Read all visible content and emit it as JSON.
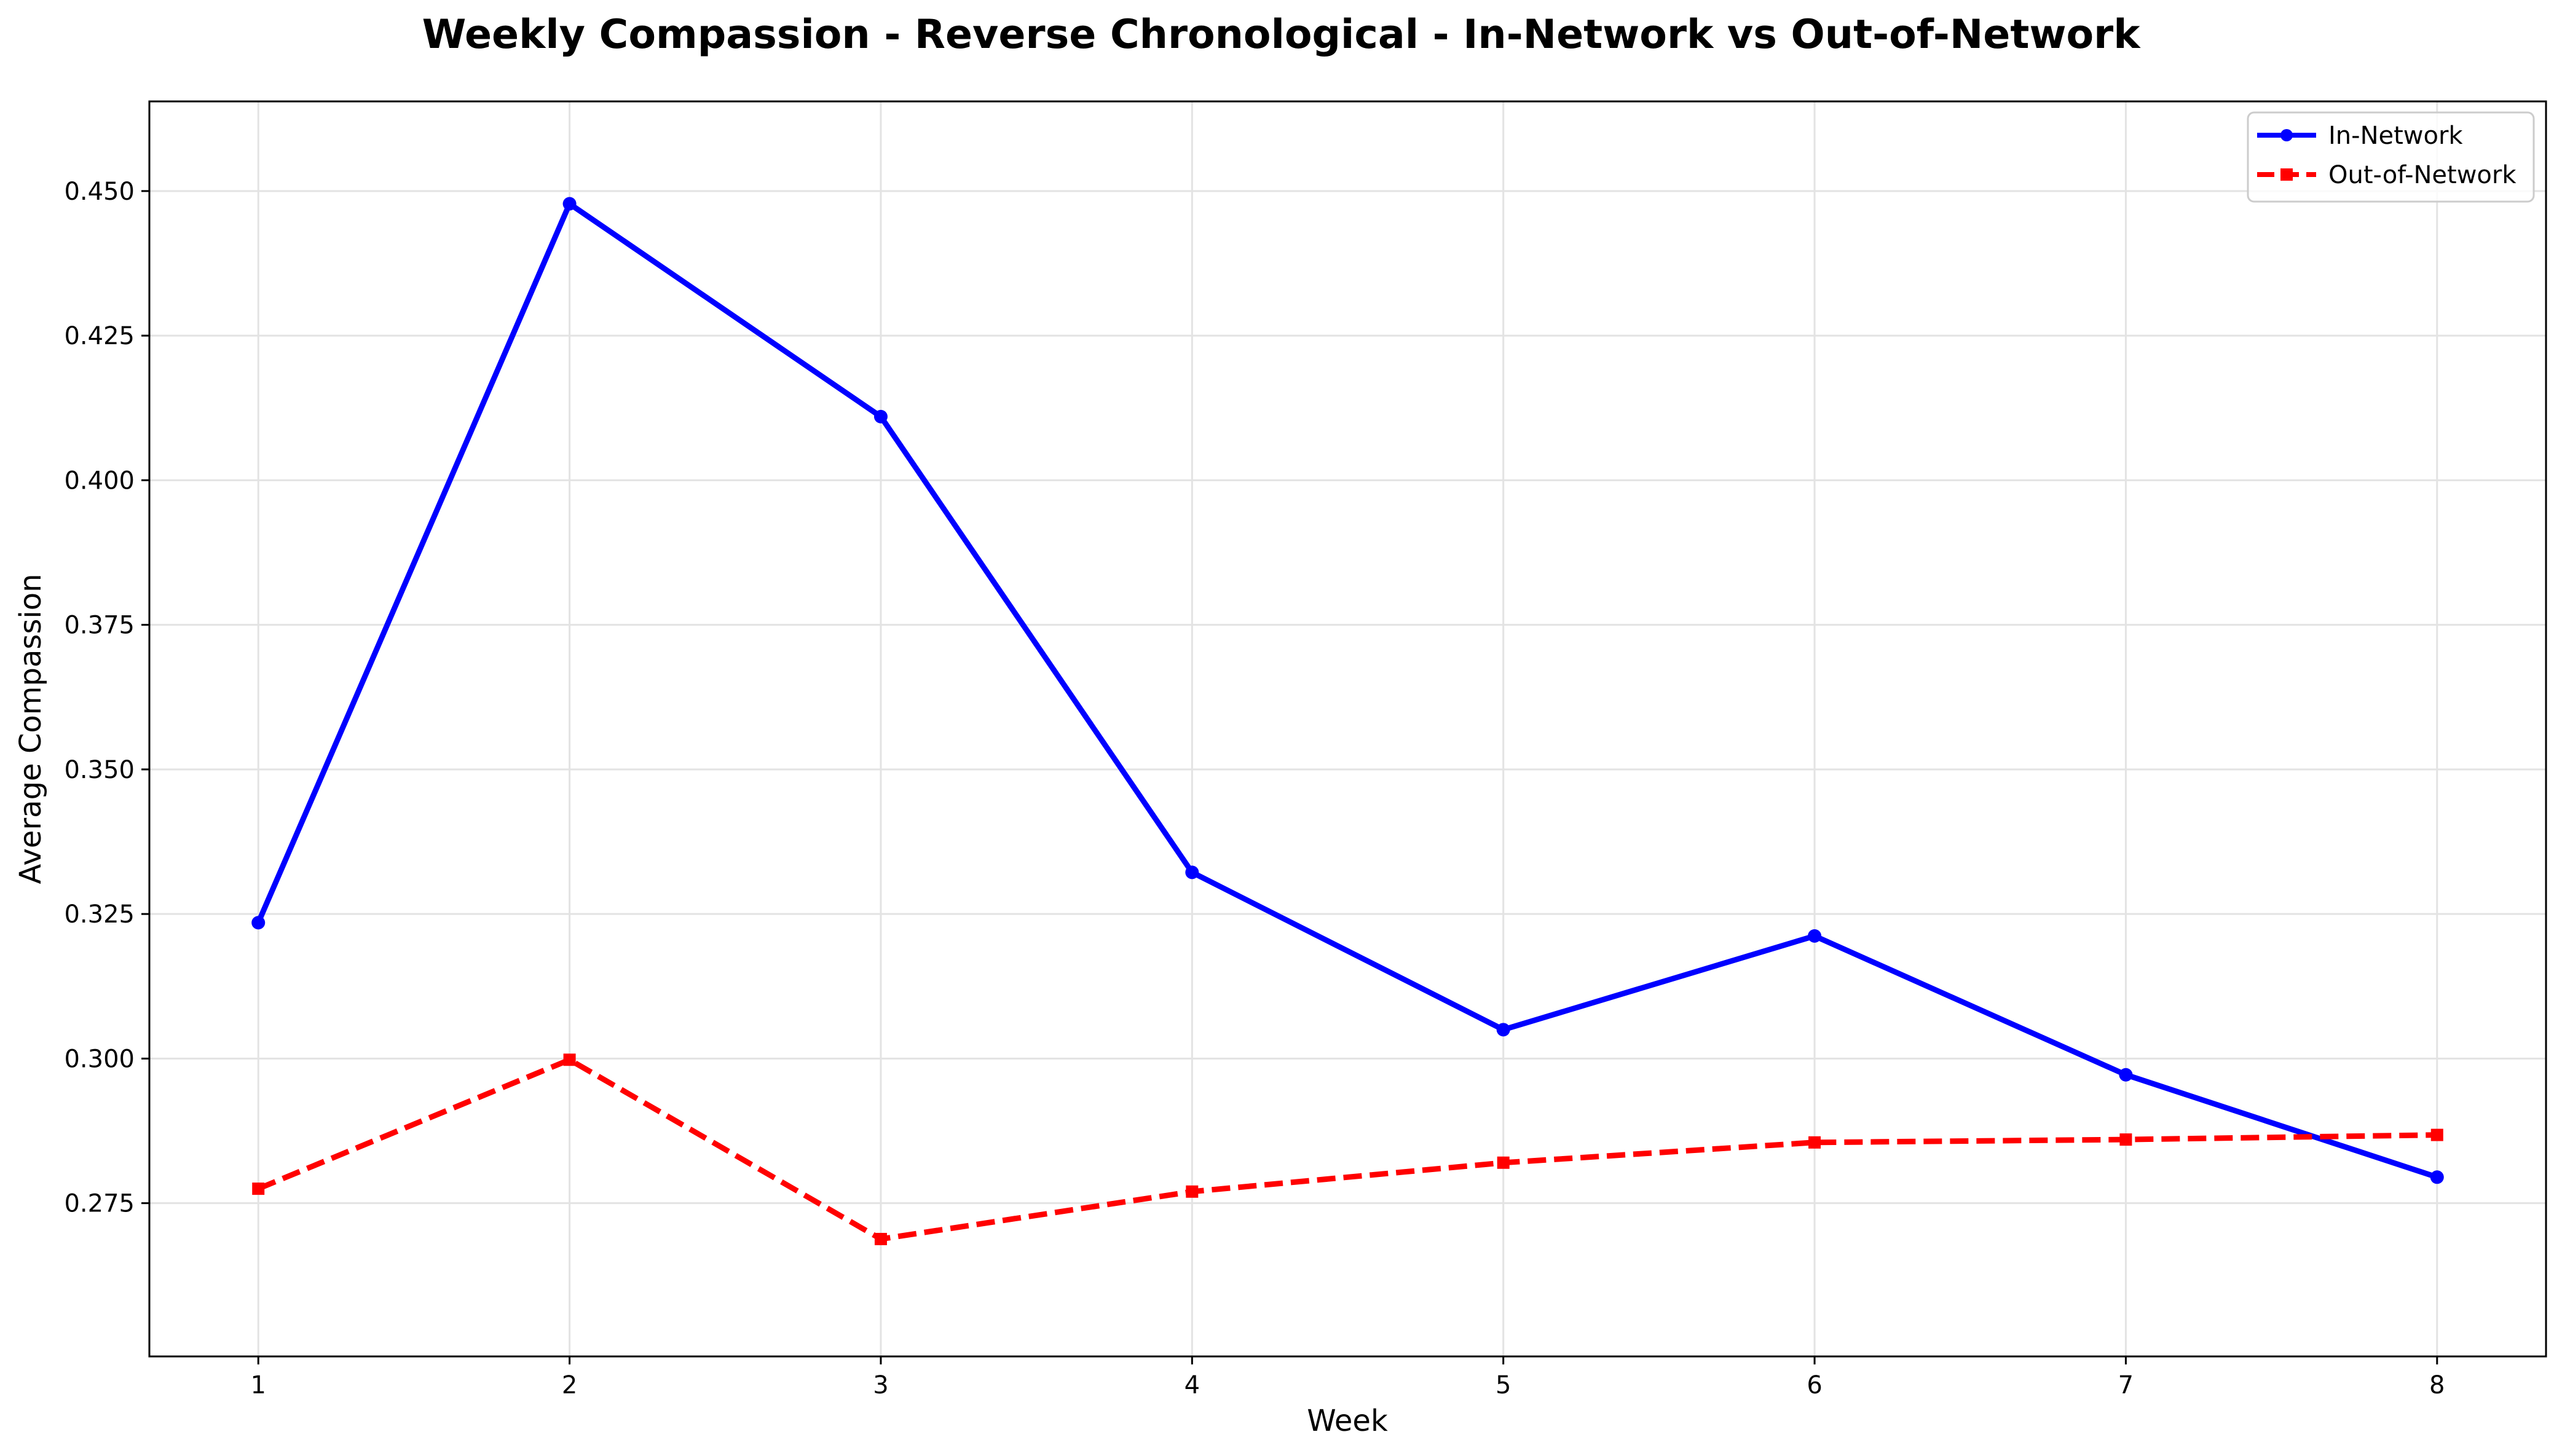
{
  "chart_data": {
    "type": "line",
    "title": "Weekly Compassion - Reverse Chronological - In-Network vs Out-of-Network",
    "xlabel": "Week",
    "ylabel": "Average Compassion",
    "x": [
      1,
      2,
      3,
      4,
      5,
      6,
      7,
      8
    ],
    "x_tick_labels": [
      "1",
      "2",
      "3",
      "4",
      "5",
      "6",
      "7",
      "8"
    ],
    "xlim": [
      0.65,
      8.35
    ],
    "ylim": [
      0.2485,
      0.4655
    ],
    "y_ticks": [
      0.275,
      0.3,
      0.325,
      0.35,
      0.375,
      0.4,
      0.425,
      0.45
    ],
    "y_tick_labels": [
      "0.275",
      "0.300",
      "0.325",
      "0.350",
      "0.375",
      "0.400",
      "0.425",
      "0.450"
    ],
    "grid": true,
    "legend_position": "top-right",
    "series": [
      {
        "name": "In-Network",
        "color": "#0000ff",
        "line_style": "solid",
        "marker": "circle",
        "values": [
          0.3235,
          0.4478,
          0.411,
          0.3322,
          0.305,
          0.3212,
          0.2972,
          0.2795
        ]
      },
      {
        "name": "Out-of-Network",
        "color": "#ff0000",
        "line_style": "dashed",
        "marker": "square",
        "values": [
          0.2775,
          0.2998,
          0.2688,
          0.277,
          0.282,
          0.2855,
          0.286,
          0.2868
        ]
      }
    ]
  }
}
